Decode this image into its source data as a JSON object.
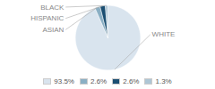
{
  "chart_data": {
    "type": "pie",
    "categories": [
      "WHITE",
      "ASIAN",
      "HISPANIC",
      "BLACK"
    ],
    "values": [
      93.5,
      2.6,
      2.6,
      1.3
    ],
    "value_labels": [
      "93.5%",
      "2.6%",
      "2.6%",
      "1.3%"
    ],
    "colors": [
      "#d9e4ee",
      "#8aafc4",
      "#1b4f72",
      "#aec6d5"
    ],
    "legend": "bottom"
  }
}
